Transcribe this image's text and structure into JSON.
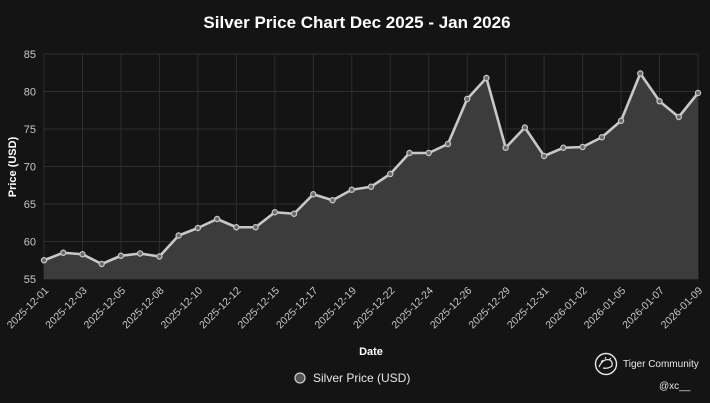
{
  "chart_data": {
    "type": "area",
    "title": "Silver Price Chart Dec 2025 - Jan 2026",
    "xlabel": "Date",
    "ylabel": "Price (USD)",
    "ylim": [
      55,
      85
    ],
    "y_ticks": [
      55,
      60,
      65,
      70,
      75,
      80,
      85
    ],
    "grid": true,
    "legend_position": "bottom",
    "x_tick_labels": [
      "2025-12-01",
      "2025-12-03",
      "2025-12-05",
      "2025-12-08",
      "2025-12-10",
      "2025-12-12",
      "2025-12-15",
      "2025-12-17",
      "2025-12-19",
      "2025-12-22",
      "2025-12-24",
      "2025-12-26",
      "2025-12-29",
      "2025-12-31",
      "2026-01-02",
      "2026-01-05",
      "2026-01-07",
      "2026-01-09"
    ],
    "series": [
      {
        "name": "Silver Price (USD)",
        "color": "#c8c8c8",
        "fill": "#3c3c3c",
        "points": [
          {
            "x": "2025-12-01",
            "y": 57.5
          },
          {
            "x": "2025-12-02",
            "y": 58.5
          },
          {
            "x": "2025-12-03",
            "y": 58.3
          },
          {
            "x": "2025-12-04",
            "y": 57.0
          },
          {
            "x": "2025-12-05",
            "y": 58.1
          },
          {
            "x": "2025-12-06",
            "y": 58.4
          },
          {
            "x": "2025-12-08",
            "y": 58.0
          },
          {
            "x": "2025-12-09",
            "y": 60.8
          },
          {
            "x": "2025-12-10",
            "y": 61.8
          },
          {
            "x": "2025-12-11",
            "y": 63.0
          },
          {
            "x": "2025-12-12",
            "y": 61.9
          },
          {
            "x": "2025-12-13",
            "y": 61.9
          },
          {
            "x": "2025-12-15",
            "y": 63.9
          },
          {
            "x": "2025-12-16",
            "y": 63.7
          },
          {
            "x": "2025-12-17",
            "y": 66.3
          },
          {
            "x": "2025-12-18",
            "y": 65.5
          },
          {
            "x": "2025-12-19",
            "y": 66.9
          },
          {
            "x": "2025-12-20",
            "y": 67.3
          },
          {
            "x": "2025-12-22",
            "y": 69.0
          },
          {
            "x": "2025-12-23",
            "y": 71.8
          },
          {
            "x": "2025-12-24",
            "y": 71.8
          },
          {
            "x": "2025-12-25",
            "y": 73.0
          },
          {
            "x": "2025-12-26",
            "y": 79.0
          },
          {
            "x": "2025-12-27",
            "y": 81.8
          },
          {
            "x": "2025-12-29",
            "y": 72.5
          },
          {
            "x": "2025-12-30",
            "y": 75.2
          },
          {
            "x": "2025-12-31",
            "y": 71.4
          },
          {
            "x": "2026-01-01",
            "y": 72.5
          },
          {
            "x": "2026-01-02",
            "y": 72.6
          },
          {
            "x": "2026-01-03",
            "y": 73.9
          },
          {
            "x": "2026-01-05",
            "y": 76.1
          },
          {
            "x": "2026-01-06",
            "y": 82.4
          },
          {
            "x": "2026-01-07",
            "y": 78.7
          },
          {
            "x": "2026-01-08",
            "y": 76.6
          },
          {
            "x": "2026-01-09",
            "y": 79.8
          }
        ]
      }
    ]
  },
  "legend": {
    "label": "Silver Price (USD)"
  },
  "watermark": {
    "brand": "Tiger Community",
    "handle": "@xc__",
    "icon": "tiger-logo-icon"
  }
}
